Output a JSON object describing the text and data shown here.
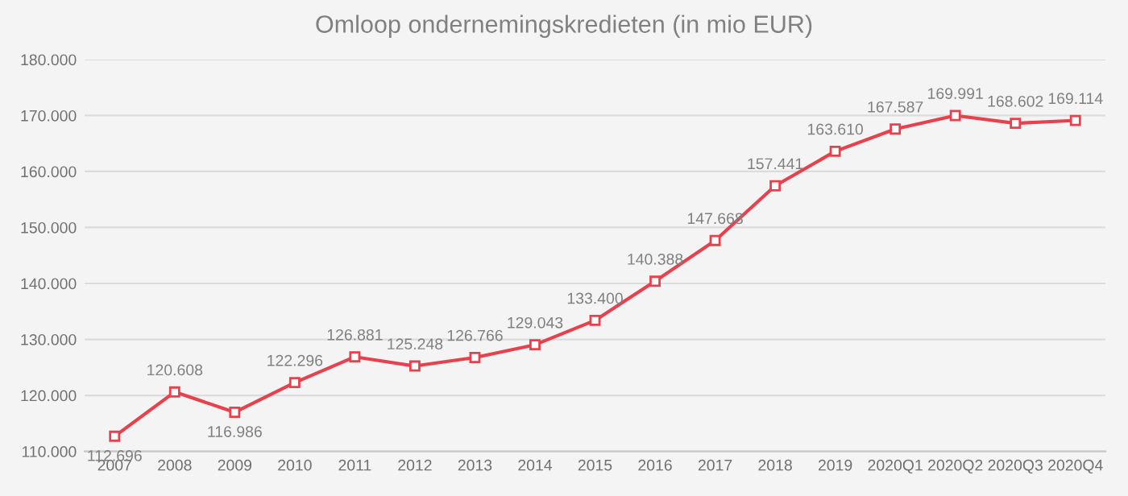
{
  "chart_data": {
    "type": "line",
    "title": "Omloop ondernemingskredieten (in mio EUR)",
    "categories": [
      "2007",
      "2008",
      "2009",
      "2010",
      "2011",
      "2012",
      "2013",
      "2014",
      "2015",
      "2016",
      "2017",
      "2018",
      "2019",
      "2020Q1",
      "2020Q2",
      "2020Q3",
      "2020Q4"
    ],
    "series": [
      {
        "color": "#e8414e",
        "values": [
          112696,
          120608,
          116986,
          122296,
          126881,
          125248,
          126766,
          129043,
          133400,
          140388,
          147668,
          157441,
          163610,
          167587,
          169991,
          168602,
          169114
        ],
        "value_labels": [
          "112.696",
          "120.608",
          "116.986",
          "122.296",
          "126.881",
          "125.248",
          "126.766",
          "129.043",
          "133.400",
          "140.388",
          "147.668",
          "157.441",
          "163.610",
          "167.587",
          "169.991",
          "168.602",
          "169.114"
        ]
      }
    ],
    "ylim": [
      110000,
      180000
    ],
    "yticks": [
      {
        "value": 110000,
        "label": "110.000"
      },
      {
        "value": 120000,
        "label": "120.000"
      },
      {
        "value": 130000,
        "label": "130.000"
      },
      {
        "value": 140000,
        "label": "140.000"
      },
      {
        "value": 150000,
        "label": "150.000"
      },
      {
        "value": 160000,
        "label": "160.000"
      },
      {
        "value": 170000,
        "label": "170.000"
      },
      {
        "value": 180000,
        "label": "180.000"
      }
    ],
    "grid": "y",
    "marker": "square",
    "line_style": "solid"
  }
}
